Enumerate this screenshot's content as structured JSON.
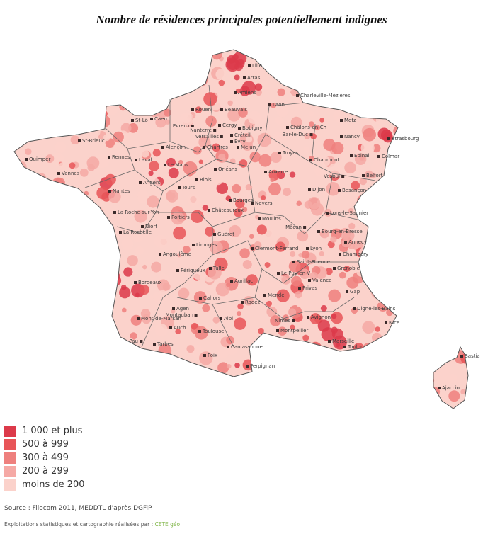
{
  "title": "Nombre de résidences principales potentiellement indignes",
  "legend": [
    {
      "label": "1 000 et plus",
      "color": "#dc3a4a"
    },
    {
      "label": "500 à 999",
      "color": "#e85558"
    },
    {
      "label": "300 à 499",
      "color": "#ee807e"
    },
    {
      "label": "200 à 299",
      "color": "#f5a9a5"
    },
    {
      "label": "moins de 200",
      "color": "#fbd2cb"
    }
  ],
  "source": "Source : Filocom 2011, MEDDTL d'après DGFiP.",
  "credit": {
    "text": "Exploitations statistiques et cartographie réalisées par :",
    "brand": "CETE géo",
    "brand_color": "#7fb547"
  },
  "cities": [
    "Lille",
    "Arras",
    "Amiens",
    "Laon",
    "Charleville-Mézières",
    "Beauvais",
    "Rouen",
    "St-Lô",
    "Caen",
    "Evreux",
    "Cergy",
    "Nanterre",
    "Bobigny",
    "Versailles",
    "Créteil",
    "Evry",
    "Melun",
    "Chartres",
    "Alençon",
    "Châlons-en-Ch",
    "Metz",
    "Bar-le-Duc",
    "Nancy",
    "Strasbourg",
    "Troyes",
    "Chaumont",
    "Epinal",
    "Colmar",
    "St-Brieuc",
    "Quimper",
    "Rennes",
    "Laval",
    "Le Mans",
    "Vannes",
    "Angers",
    "Nantes",
    "Orléans",
    "Auxerre",
    "Blois",
    "Tours",
    "Dijon",
    "Vesoul",
    "Belfort",
    "Besançon",
    "Bourges",
    "Nevers",
    "Châteauroux",
    "La Roche-sur-Yon",
    "Poitiers",
    "Niort",
    "La Rochelle",
    "Moulins",
    "Lons-le-Saunier",
    "Mâcon",
    "Bourg-en-Bresse",
    "Annecy",
    "Chambéry",
    "Guéret",
    "Limoges",
    "Angoulême",
    "Clermont-Ferrand",
    "Lyon",
    "Saint-Etienne",
    "Grenoble",
    "Tulle",
    "Périgueux",
    "Le Puy-en-V",
    "Valence",
    "Privas",
    "Gap",
    "Aurillac",
    "Bordeaux",
    "Mende",
    "Rodez",
    "Cahors",
    "Digne-les-Bains",
    "Agen",
    "Montauban",
    "Albi",
    "Mont-de-Marsan",
    "Avignon",
    "Nîmes",
    "Nice",
    "Montpellier",
    "Auch",
    "Toulouse",
    "Marseille",
    "Toulon",
    "Pau",
    "Tarbes",
    "Carcassonne",
    "Foix",
    "Perpignan",
    "Bastia",
    "Ajaccio"
  ]
}
